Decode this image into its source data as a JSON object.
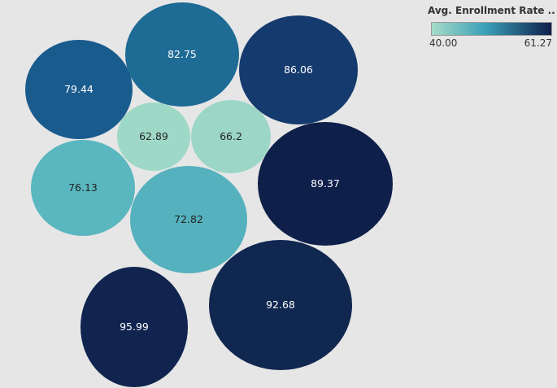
{
  "chart_data": {
    "type": "packed-bubble",
    "legend": {
      "title": "Avg. Enrollment Rate ..",
      "min_label": "40.00",
      "max_label": "61.27",
      "color_low": "#a6dbc9",
      "color_high": "#0e1f4a",
      "placement": "top-right"
    },
    "bubbles": [
      {
        "label": "82.75",
        "value": 82.75,
        "color_value": 55.0,
        "fill": "#1e6b95",
        "text_color": "#ffffff"
      },
      {
        "label": "86.06",
        "value": 86.06,
        "color_value": 58.5,
        "fill": "#153a6e",
        "text_color": "#ffffff"
      },
      {
        "label": "79.44",
        "value": 79.44,
        "color_value": 56.5,
        "fill": "#1a5b8e",
        "text_color": "#ffffff"
      },
      {
        "label": "62.89",
        "value": 62.89,
        "color_value": 41.0,
        "fill": "#9ed9c7",
        "text_color": "#222222"
      },
      {
        "label": "66.2",
        "value": 66.2,
        "color_value": 41.5,
        "fill": "#9bd6c6",
        "text_color": "#222222"
      },
      {
        "label": "76.13",
        "value": 76.13,
        "color_value": 46.0,
        "fill": "#5ab6bf",
        "text_color": "#222222"
      },
      {
        "label": "72.82",
        "value": 72.82,
        "color_value": 46.5,
        "fill": "#55b1bd",
        "text_color": "#222222"
      },
      {
        "label": "89.37",
        "value": 89.37,
        "color_value": 61.27,
        "fill": "#0e1f4a",
        "text_color": "#ffffff"
      },
      {
        "label": "95.99",
        "value": 95.99,
        "color_value": 61.0,
        "fill": "#10244f",
        "text_color": "#ffffff"
      },
      {
        "label": "92.68",
        "value": 92.68,
        "color_value": 60.5,
        "fill": "#102750",
        "text_color": "#ffffff"
      }
    ]
  }
}
